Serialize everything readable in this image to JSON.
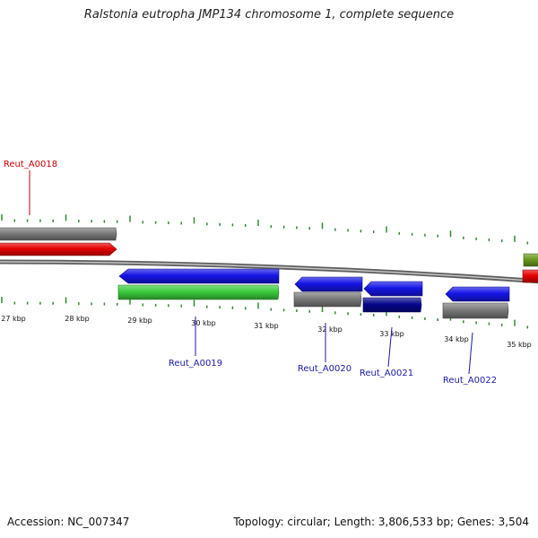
{
  "title": "Ralstonia eutropha JMP134 chromosome 1, complete sequence",
  "footer": {
    "accession": "Accession: NC_007347",
    "summary": "Topology: circular; Length: 3,806,533 bp; Genes: 3,504"
  },
  "colors": {
    "backbone": "#8a8a8a",
    "tick": "#2e8b2e",
    "label_red": "#cc0000",
    "label_blue": "#1a1aa6",
    "gene_red": "#e60000",
    "gene_blue": "#1515e6",
    "gene_green": "#3ccc3c",
    "gene_gray": "#7a7a7a",
    "gene_navy": "#05058c",
    "gene_olive": "#6b9a1e"
  },
  "kbp_labels": [
    "27 kbp",
    "28 kbp",
    "29 kbp",
    "30 kbp",
    "31 kbp",
    "32 kbp",
    "33 kbp",
    "34 kbp",
    "35 kbp"
  ],
  "gene_labels": [
    {
      "name": "Reut_A0018",
      "color": "red"
    },
    {
      "name": "Reut_A0019",
      "color": "blue"
    },
    {
      "name": "Reut_A0020",
      "color": "blue"
    },
    {
      "name": "Reut_A0021",
      "color": "blue"
    },
    {
      "name": "Reut_A0022",
      "color": "blue"
    }
  ],
  "features": [
    {
      "id": "gray-feature-1",
      "color": "gene_gray",
      "strand": "forward"
    },
    {
      "id": "red-gene-1",
      "color": "gene_red",
      "strand": "forward"
    },
    {
      "id": "blue-gene-0019",
      "color": "gene_blue",
      "strand": "reverse"
    },
    {
      "id": "green-feature-0019",
      "color": "gene_green",
      "strand": "reverse"
    },
    {
      "id": "blue-gene-0020",
      "color": "gene_blue",
      "strand": "reverse"
    },
    {
      "id": "gray-feature-0020",
      "color": "gene_gray",
      "strand": "reverse"
    },
    {
      "id": "blue-gene-0021",
      "color": "gene_blue",
      "strand": "reverse"
    },
    {
      "id": "navy-feature-0021",
      "color": "gene_navy",
      "strand": "reverse"
    },
    {
      "id": "blue-gene-0022",
      "color": "gene_blue",
      "strand": "reverse"
    },
    {
      "id": "gray-feature-0022",
      "color": "gene_gray",
      "strand": "reverse"
    },
    {
      "id": "olive-feature-edge",
      "color": "gene_olive",
      "strand": "forward"
    },
    {
      "id": "red-feature-edge",
      "color": "gene_red",
      "strand": "forward"
    }
  ]
}
